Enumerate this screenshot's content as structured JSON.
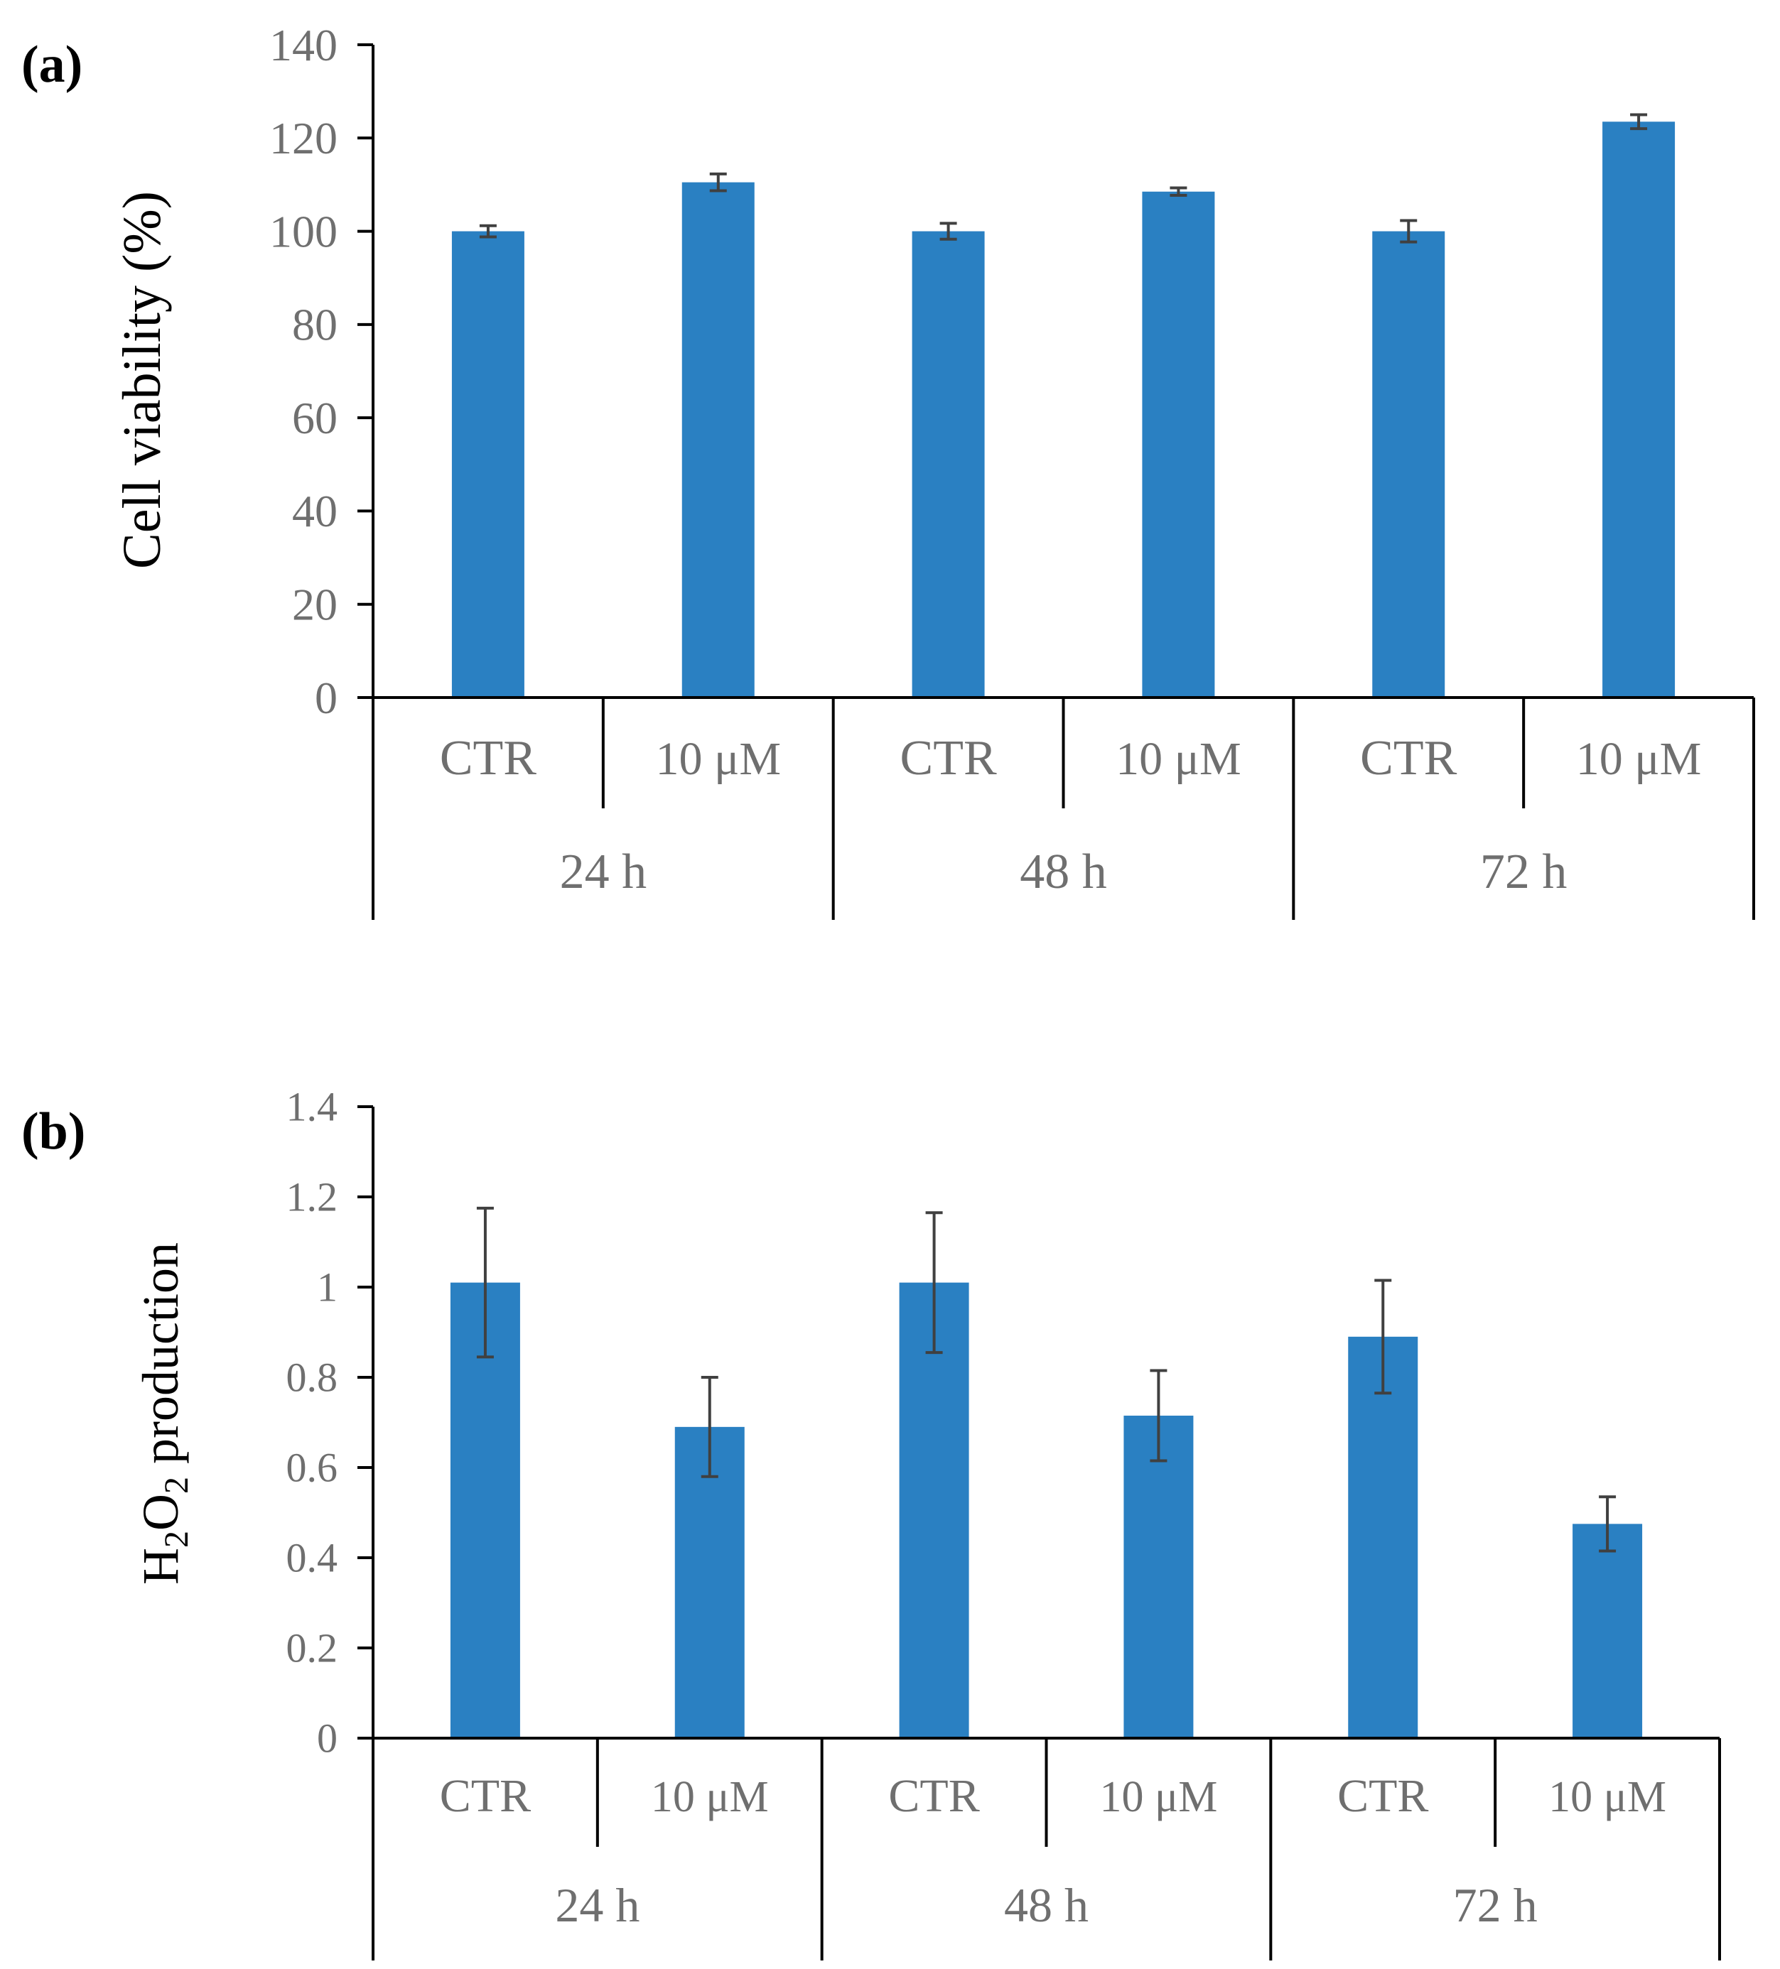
{
  "chart_data": [
    {
      "type": "bar",
      "panel_label": "(a)",
      "ylabel": "Cell viability (%)",
      "ylim": [
        0,
        140
      ],
      "yticks": [
        0,
        20,
        40,
        60,
        80,
        100,
        120,
        140
      ],
      "ytick_labels": [
        "0",
        "20",
        "40",
        "60",
        "80",
        "100",
        "120",
        "140"
      ],
      "groups": [
        "24 h",
        "48 h",
        "72 h"
      ],
      "categories": [
        "CTR",
        "10 μM",
        "CTR",
        "10 μM",
        "CTR",
        "10 μM"
      ],
      "values": [
        100,
        110.5,
        100,
        108.5,
        100,
        123.5
      ],
      "errors": [
        1.2,
        1.8,
        1.7,
        0.8,
        2.3,
        1.5
      ],
      "color": "#2A80C2",
      "grid": false
    },
    {
      "type": "bar",
      "panel_label": "(b)",
      "ylabel_main": "H",
      "ylabel_sub1": "2",
      "ylabel_mid": "O",
      "ylabel_sub2": "2",
      "ylabel_rest": " production",
      "ylim": [
        0,
        1.4
      ],
      "yticks": [
        0,
        0.2,
        0.4,
        0.6,
        0.8,
        1.0,
        1.2,
        1.4
      ],
      "ytick_labels": [
        "0",
        "0.2",
        "0.4",
        "0.6",
        "0.8",
        "1",
        "1.2",
        "1.4"
      ],
      "groups": [
        "24 h",
        "48 h",
        "72 h"
      ],
      "categories": [
        "CTR",
        "10 μM",
        "CTR",
        "10 μM",
        "CTR",
        "10 μM"
      ],
      "values": [
        1.01,
        0.69,
        1.01,
        0.715,
        0.89,
        0.475
      ],
      "errors": [
        0.165,
        0.11,
        0.155,
        0.1,
        0.125,
        0.06
      ],
      "color": "#2A80C2",
      "grid": false
    }
  ]
}
